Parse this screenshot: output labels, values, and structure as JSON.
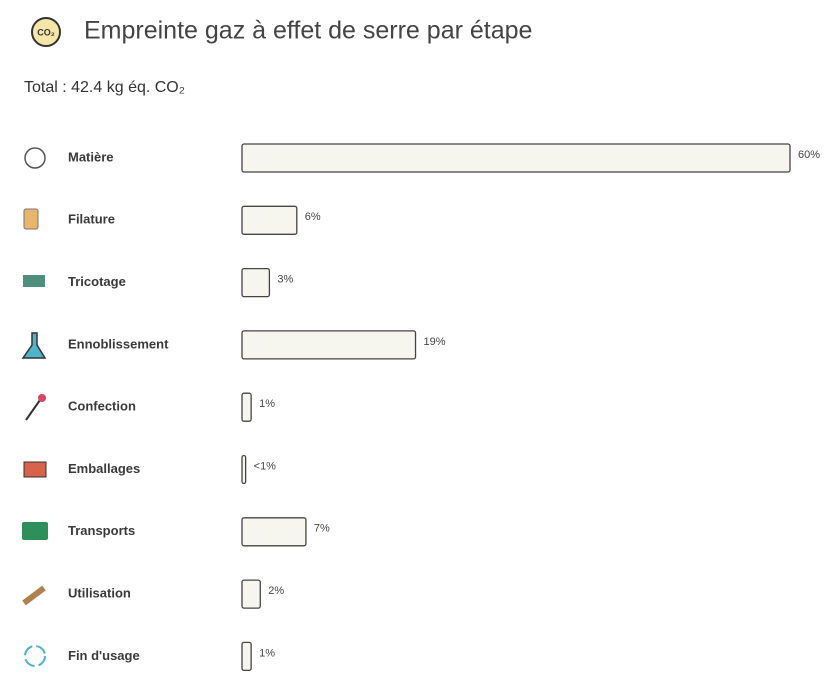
{
  "chart_data": {
    "type": "bar",
    "orientation": "horizontal",
    "title": "Empreinte gaz à effet de serre par étape",
    "subtitle": "Total : 42.4 kg éq. CO₂",
    "categories": [
      "Matière",
      "Filature",
      "Tricotage",
      "Ennoblissement",
      "Confection",
      "Emballages",
      "Transports",
      "Utilisation",
      "Fin d'usage"
    ],
    "values": [
      60,
      6,
      3,
      19,
      1,
      0.4,
      7,
      2,
      1
    ],
    "value_labels": [
      "60%",
      "6%",
      "3%",
      "19%",
      "1%",
      "<1%",
      "7%",
      "2%",
      "1%"
    ],
    "color": "#f6f6ef"
  }
}
